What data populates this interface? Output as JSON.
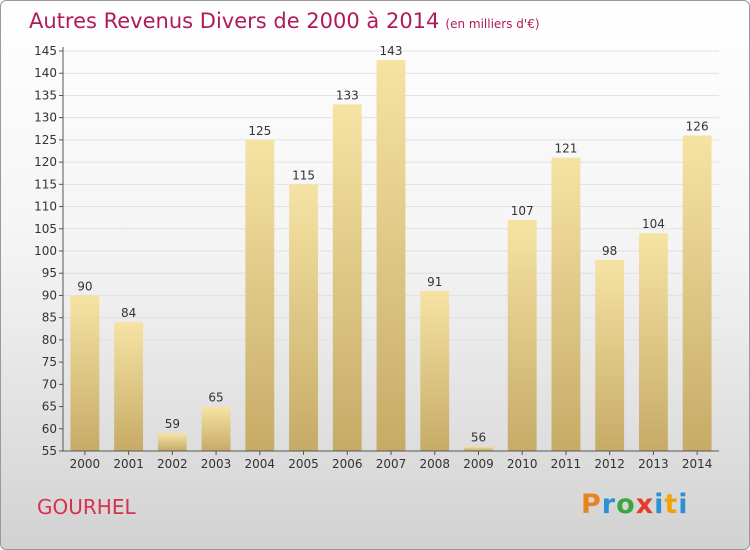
{
  "header": {
    "title": "Autres Revenus Divers de 2000 à 2014",
    "subtitle": "(en milliers d'€)"
  },
  "footer": {
    "town": "GOURHEL",
    "logo": [
      "P",
      "r",
      "o",
      "x",
      "i",
      "t",
      "i"
    ]
  },
  "chart_data": {
    "type": "bar",
    "title": "Autres Revenus Divers de 2000 à 2014",
    "subtitle": "(en milliers d'€)",
    "xlabel": "",
    "ylabel": "",
    "categories": [
      "2000",
      "2001",
      "2002",
      "2003",
      "2004",
      "2005",
      "2006",
      "2007",
      "2008",
      "2009",
      "2010",
      "2011",
      "2012",
      "2013",
      "2014"
    ],
    "values": [
      90,
      84,
      59,
      65,
      125,
      115,
      133,
      143,
      91,
      56,
      107,
      121,
      98,
      104,
      126
    ],
    "ylim": [
      55,
      145
    ],
    "yticks": [
      55,
      60,
      65,
      70,
      75,
      80,
      85,
      90,
      95,
      100,
      105,
      110,
      115,
      120,
      125,
      130,
      135,
      140,
      145
    ],
    "grid": true,
    "legend": "none",
    "colors": {
      "bar_top": "#f6e3a4",
      "bar_bottom": "#c6ab66",
      "axis": "#555555",
      "grid": "#e1e1e1"
    }
  }
}
